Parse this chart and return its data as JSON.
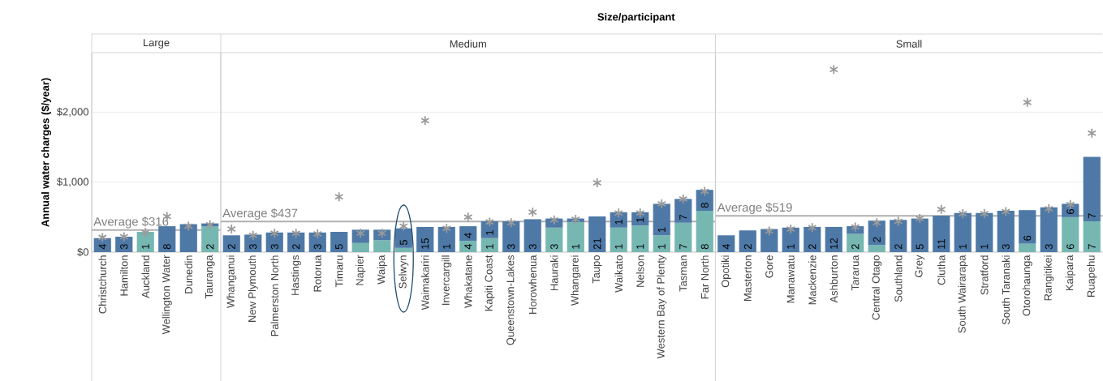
{
  "chart_data": [
    {
      "type": "bar",
      "title": "Large",
      "ylabel": "Annual water charges ($/year)",
      "stacked": true,
      "grid": "y",
      "categories": [
        "Christchurch",
        "Hamilton",
        "Auckland",
        "Wellington Water",
        "Dunedin",
        "Tauranga"
      ],
      "ylim": [
        0,
        2850
      ],
      "yticks": [
        {
          "value": 0,
          "label": "$0"
        },
        {
          "value": 1000,
          "label": "$1,000"
        },
        {
          "value": 2000,
          "label": "$2,000"
        }
      ],
      "ref_lines": [
        {
          "axis": "y",
          "value": 316,
          "label": "Average $316",
          "color": "#b0b0b0"
        }
      ],
      "annotations": [
        "Size/participant",
        {
          "text": "4",
          "x": "Christchurch",
          "y": 0
        },
        {
          "text": "3",
          "x": "Hamilton",
          "y": 0
        },
        {
          "text": "1",
          "x": "Auckland",
          "y": 0
        },
        {
          "text": "8",
          "x": "Wellington Water",
          "y": 0
        },
        {
          "text": "2",
          "x": "Tauranga",
          "y": 0
        }
      ],
      "series": [
        {
          "color": "#76b7b2",
          "values": [
            null,
            null,
            290,
            null,
            null,
            370
          ]
        },
        {
          "color": "#4e79a7",
          "values": [
            200,
            220,
            null,
            370,
            400,
            40
          ]
        },
        {
          "type": "scatter",
          "marker": "cross",
          "color": "#9a9a9a",
          "x": [
            "Christchurch",
            "Hamilton",
            "Auckland",
            "Wellington Water",
            "Dunedin",
            "Tauranga"
          ],
          "values": [
            210,
            220,
            280,
            510,
            370,
            390
          ]
        }
      ]
    },
    {
      "type": "bar",
      "title": "Medium",
      "stacked": true,
      "grid": "y",
      "tick_labels": "x",
      "categories": [
        "Whanganui",
        "New Plymouth",
        "Palmerston North",
        "Hastings",
        "Rotorua",
        "Timaru",
        "Napier",
        "Waipa",
        "Selwyn",
        "Waimakariri",
        "Invercargill",
        "Whakatane",
        "Kapiti Coast",
        "Queenstown-Lakes",
        "Horowhenua",
        "Hauraki",
        "Whangarei",
        "Taupo",
        "Waikato",
        "Nelson",
        "Western Bay of Plenty",
        "Tasman",
        "Far North"
      ],
      "ylim": [
        0,
        2850
      ],
      "yticks": [
        0,
        1000,
        2000
      ],
      "ref_lines": [
        {
          "axis": "y",
          "value": 437,
          "label": "Average $437",
          "color": "#b0b0b0"
        }
      ],
      "annotations": [
        {
          "text": "2",
          "x": "Whanganui",
          "y": 0
        },
        {
          "text": "3",
          "x": "New Plymouth",
          "y": 0
        },
        {
          "text": "3",
          "x": "Palmerston North",
          "y": 0
        },
        {
          "text": "2",
          "x": "Hastings",
          "y": 0
        },
        {
          "text": "3",
          "x": "Rotorua",
          "y": 0
        },
        {
          "text": "5",
          "x": "Timaru",
          "y": 0
        },
        {
          "text": "5",
          "x": "Selwyn",
          "y": 60
        },
        {
          "text": "15",
          "x": "Waimakariri",
          "y": 0
        },
        {
          "text": "1",
          "x": "Invercargill",
          "y": 0
        },
        {
          "text": "4",
          "x": "Whakatane",
          "y": 0
        },
        {
          "text": "4",
          "x": "Whakatane",
          "y": 160
        },
        {
          "text": "1",
          "x": "Kapiti Coast",
          "y": 0
        },
        {
          "text": "1",
          "x": "Kapiti Coast",
          "y": 200
        },
        {
          "text": "3",
          "x": "Queenstown-Lakes",
          "y": 0
        },
        {
          "text": "3",
          "x": "Horowhenua",
          "y": 0
        },
        {
          "text": "3",
          "x": "Hauraki",
          "y": 0
        },
        {
          "text": "1",
          "x": "Whangarei",
          "y": 0
        },
        {
          "text": "21",
          "x": "Taupo",
          "y": 0
        },
        {
          "text": "1",
          "x": "Waikato",
          "y": 0
        },
        {
          "text": "1",
          "x": "Waikato",
          "y": 350
        },
        {
          "text": "1",
          "x": "Nelson",
          "y": 0
        },
        {
          "text": "1",
          "x": "Nelson",
          "y": 380
        },
        {
          "text": "1",
          "x": "Western Bay of Plenty",
          "y": 0
        },
        {
          "text": "1",
          "x": "Western Bay of Plenty",
          "y": 240
        },
        {
          "text": "7",
          "x": "Tasman",
          "y": 0
        },
        {
          "text": "7",
          "x": "Tasman",
          "y": 420
        },
        {
          "text": "8",
          "x": "Far North",
          "y": 0
        },
        {
          "text": "8",
          "x": "Far North",
          "y": 590
        }
      ],
      "series": [
        {
          "color": "#76b7b2",
          "values": [
            null,
            null,
            null,
            null,
            null,
            null,
            130,
            170,
            60,
            null,
            null,
            160,
            200,
            null,
            null,
            350,
            430,
            null,
            350,
            380,
            240,
            420,
            590
          ]
        },
        {
          "color": "#4e79a7",
          "values": [
            240,
            250,
            280,
            280,
            280,
            290,
            190,
            150,
            280,
            360,
            360,
            210,
            240,
            440,
            470,
            130,
            50,
            510,
            220,
            190,
            450,
            340,
            300
          ]
        },
        {
          "type": "scatter",
          "marker": "cross",
          "color": "#9a9a9a",
          "x": [
            "Whanganui",
            "New Plymouth",
            "Palmerston North",
            "Hastings",
            "Rotorua",
            "Timaru",
            "Napier",
            "Waipa",
            "Selwyn",
            "Waimakariri",
            "Invercargill",
            "Whakatane",
            "Kapiti Coast",
            "Queenstown-Lakes",
            "Horowhenua",
            "Hauraki",
            "Whangarei",
            "Taupo",
            "Waikato",
            "Nelson",
            "Western Bay of Plenty",
            "Tasman",
            "Far North"
          ],
          "values": [
            330,
            240,
            270,
            270,
            260,
            790,
            270,
            270,
            370,
            1880,
            340,
            500,
            430,
            420,
            570,
            460,
            470,
            990,
            560,
            560,
            690,
            760,
            870
          ]
        }
      ]
    },
    {
      "type": "bar",
      "title": "Small",
      "stacked": true,
      "grid": "y",
      "tick_labels": "x",
      "categories": [
        "Opotiki",
        "Masterton",
        "Gore",
        "Manawatu",
        "Mackenzie",
        "Ashburton",
        "Tararua",
        "Central Otago",
        "Southland",
        "Grey",
        "Clutha",
        "South Wairarapa",
        "Stratford",
        "South Taranaki",
        "Otorohaunga",
        "Rangitikei",
        "Kaipara",
        "Ruapehu"
      ],
      "ylim": [
        0,
        2850
      ],
      "yticks": [
        0,
        1000,
        2000
      ],
      "ref_lines": [
        {
          "axis": "y",
          "value": 519,
          "label": "Average $519",
          "color": "#b0b0b0"
        }
      ],
      "annotations": [
        {
          "text": "4",
          "x": "Opotiki",
          "y": 0
        },
        {
          "text": "2",
          "x": "Masterton",
          "y": 0
        },
        {
          "text": "1",
          "x": "Manawatu",
          "y": 0
        },
        {
          "text": "2",
          "x": "Mackenzie",
          "y": 0
        },
        {
          "text": "12",
          "x": "Ashburton",
          "y": 0
        },
        {
          "text": "2",
          "x": "Tararua",
          "y": 0
        },
        {
          "text": "2",
          "x": "Central Otago",
          "y": 100
        },
        {
          "text": "2",
          "x": "Southland",
          "y": 0
        },
        {
          "text": "5",
          "x": "Grey",
          "y": 0
        },
        {
          "text": "11",
          "x": "Clutha",
          "y": 0
        },
        {
          "text": "1",
          "x": "South Wairarapa",
          "y": 0
        },
        {
          "text": "1",
          "x": "Stratford",
          "y": 0
        },
        {
          "text": "3",
          "x": "South Taranaki",
          "y": 0
        },
        {
          "text": "6",
          "x": "Otorohaunga",
          "y": 120
        },
        {
          "text": "3",
          "x": "Rangitikei",
          "y": 0
        },
        {
          "text": "6",
          "x": "Kaipara",
          "y": 0
        },
        {
          "text": "6",
          "x": "Kaipara",
          "y": 500
        },
        {
          "text": "7",
          "x": "Ruapehu",
          "y": 0
        },
        {
          "text": "7",
          "x": "Ruapehu",
          "y": 440
        }
      ],
      "series": [
        {
          "color": "#76b7b2",
          "values": [
            null,
            null,
            null,
            null,
            null,
            null,
            260,
            100,
            null,
            null,
            null,
            null,
            null,
            null,
            120,
            null,
            500,
            440
          ]
        },
        {
          "color": "#4e79a7",
          "values": [
            240,
            310,
            330,
            350,
            360,
            360,
            110,
            350,
            460,
            480,
            520,
            560,
            560,
            590,
            480,
            640,
            190,
            920
          ]
        },
        {
          "type": "scatter",
          "marker": "cross",
          "color": "#9a9a9a",
          "x": [
            "Opotiki",
            "Masterton",
            "Gore",
            "Manawatu",
            "Mackenzie",
            "Ashburton",
            "Tararua",
            "Central Otago",
            "Southland",
            "Grey",
            "Clutha",
            "South Wairarapa",
            "Stratford",
            "South Taranaki",
            "Otorohaunga",
            "Rangitikei",
            "Kaipara",
            "Ruapehu"
          ],
          "values": [
            null,
            null,
            300,
            330,
            350,
            2610,
            360,
            420,
            440,
            480,
            610,
            550,
            550,
            580,
            2140,
            620,
            680,
            1700
          ]
        }
      ]
    }
  ]
}
